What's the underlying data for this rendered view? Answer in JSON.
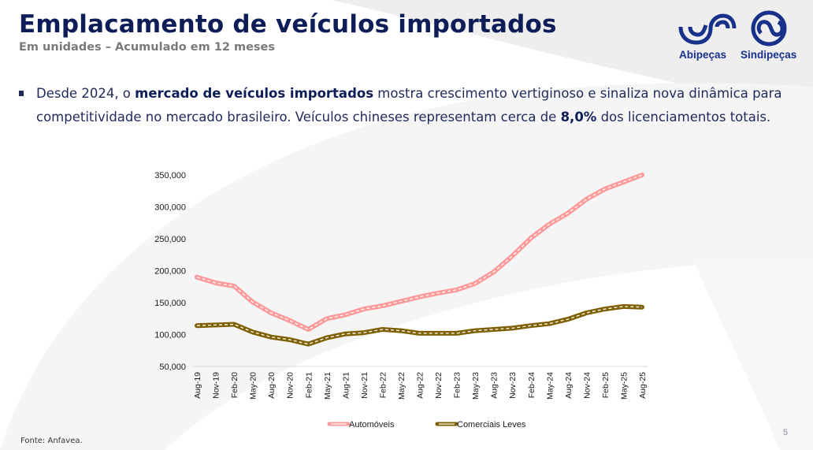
{
  "header": {
    "title": "Emplacamento de veículos importados",
    "subtitle": "Em unidades – Acumulado em 12 meses"
  },
  "logo": {
    "left_name": "Abipeças",
    "right_name": "Sindipeças",
    "color": "#17308a"
  },
  "bullet": {
    "t1": "Desde 2024, o ",
    "b1": "mercado de veículos importados",
    "t2": " mostra crescimento vertiginoso e sinaliza nova dinâmica para competitividade no mercado brasileiro. Veículos chineses representam cerca de ",
    "b2": "8,0%",
    "t3": " dos licenciamentos totais."
  },
  "footer": {
    "source": "Fonte: Anfavea.",
    "page_number": "5"
  },
  "chart_data": {
    "type": "line",
    "title": "",
    "xlabel": "",
    "ylabel": "",
    "ylim": [
      50000,
      350000
    ],
    "yticks": [
      "50,000",
      "100,000",
      "150,000",
      "200,000",
      "250,000",
      "300,000",
      "350,000"
    ],
    "ytick_values": [
      50000,
      100000,
      150000,
      200000,
      250000,
      300000,
      350000
    ],
    "grid": false,
    "legend_position": "bottom",
    "categories": [
      "Aug-19",
      "Nov-19",
      "Feb-20",
      "May-20",
      "Aug-20",
      "Nov-20",
      "Feb-21",
      "May-21",
      "Aug-21",
      "Nov-21",
      "Feb-22",
      "May-22",
      "Aug-22",
      "Nov-22",
      "Feb-23",
      "May-23",
      "Aug-23",
      "Nov-23",
      "Feb-24",
      "May-24",
      "Aug-24",
      "Nov-24",
      "Feb-25",
      "May-25",
      "Aug-25"
    ],
    "series": [
      {
        "name": "Automóveis",
        "color": "#ff9999",
        "values": [
          190000,
          181000,
          176000,
          151000,
          134000,
          122000,
          108000,
          125000,
          131000,
          140000,
          145000,
          152000,
          159000,
          165000,
          170000,
          180000,
          198000,
          223000,
          251000,
          273000,
          290000,
          312000,
          328000,
          339000,
          350000
        ]
      },
      {
        "name": "Comerciais Leves",
        "color": "#7f6000",
        "values": [
          114000,
          115000,
          116000,
          104000,
          96000,
          92000,
          85000,
          95000,
          101000,
          103000,
          108000,
          106000,
          102000,
          102000,
          102000,
          106000,
          108000,
          110000,
          114000,
          117000,
          124000,
          134000,
          140000,
          144000,
          143000
        ]
      }
    ]
  }
}
